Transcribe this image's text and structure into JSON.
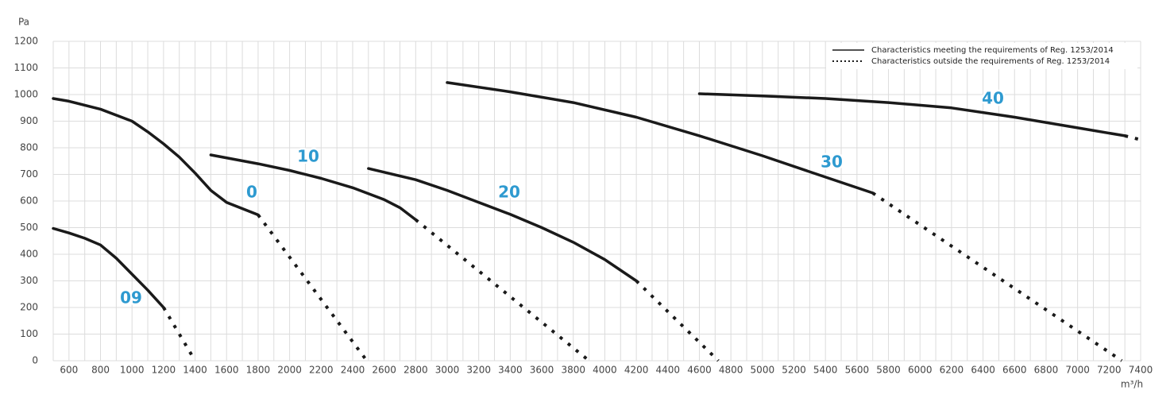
{
  "chart_data": {
    "type": "line",
    "y_label": "Pa",
    "x_label": "m³/h",
    "xlim": [
      500,
      7400
    ],
    "ylim": [
      0,
      1200
    ],
    "xticks": [
      600,
      800,
      1000,
      1200,
      1400,
      1600,
      1800,
      2000,
      2200,
      2400,
      2600,
      2800,
      3000,
      3200,
      3400,
      3600,
      3800,
      4000,
      4200,
      4400,
      4600,
      4800,
      5000,
      5200,
      5400,
      5600,
      5800,
      6000,
      6200,
      6400,
      6600,
      6800,
      7000,
      7200,
      7400
    ],
    "yticks": [
      0,
      100,
      200,
      300,
      400,
      500,
      600,
      700,
      800,
      900,
      1000,
      1100,
      1200
    ],
    "grid": true,
    "line_color": "#1a1a1a",
    "label_color": "#2e9ad0",
    "legend": {
      "position": "top-right",
      "entries": [
        {
          "label": "Characteristics meeting the requirements of Reg. 1253/2014",
          "style": "solid"
        },
        {
          "label": "Characteristics outside the requirements of Reg. 1253/2014",
          "style": "dotted"
        }
      ]
    },
    "series": [
      {
        "name": "09",
        "x": [
          500,
          600,
          700,
          800,
          900,
          1000,
          1100,
          1200
        ],
        "values": [
          497,
          480,
          460,
          435,
          385,
          325,
          265,
          200
        ],
        "ext_x": [
          1400
        ],
        "ext_values": [
          0
        ]
      },
      {
        "name": "0",
        "x": [
          500,
          600,
          800,
          1000,
          1100,
          1200,
          1300,
          1400,
          1500,
          1600,
          1800
        ],
        "values": [
          985,
          975,
          945,
          900,
          860,
          815,
          765,
          705,
          640,
          595,
          548
        ],
        "ext_x": [
          2490
        ],
        "ext_values": [
          0
        ]
      },
      {
        "name": "10",
        "x": [
          1500,
          1800,
          2000,
          2200,
          2400,
          2600,
          2700,
          2800
        ],
        "values": [
          773,
          740,
          715,
          685,
          650,
          605,
          575,
          530
        ],
        "ext_x": [
          3900
        ],
        "ext_values": [
          0
        ]
      },
      {
        "name": "20",
        "x": [
          2500,
          2800,
          3000,
          3200,
          3400,
          3600,
          3800,
          4000,
          4200
        ],
        "values": [
          722,
          680,
          640,
          595,
          550,
          500,
          445,
          380,
          300
        ],
        "ext_x": [
          4720
        ],
        "ext_values": [
          0
        ]
      },
      {
        "name": "30",
        "x": [
          3000,
          3400,
          3800,
          4200,
          4600,
          5000,
          5400,
          5700
        ],
        "values": [
          1045,
          1010,
          970,
          915,
          845,
          770,
          690,
          630
        ],
        "ext_x": [
          7280
        ],
        "ext_values": [
          0
        ]
      },
      {
        "name": "40",
        "x": [
          4600,
          5000,
          5400,
          5800,
          6200,
          6600,
          7000,
          7300
        ],
        "values": [
          1003,
          995,
          985,
          970,
          950,
          915,
          875,
          845
        ],
        "ext_x": [
          7400
        ],
        "ext_values": [
          830
        ]
      }
    ]
  }
}
